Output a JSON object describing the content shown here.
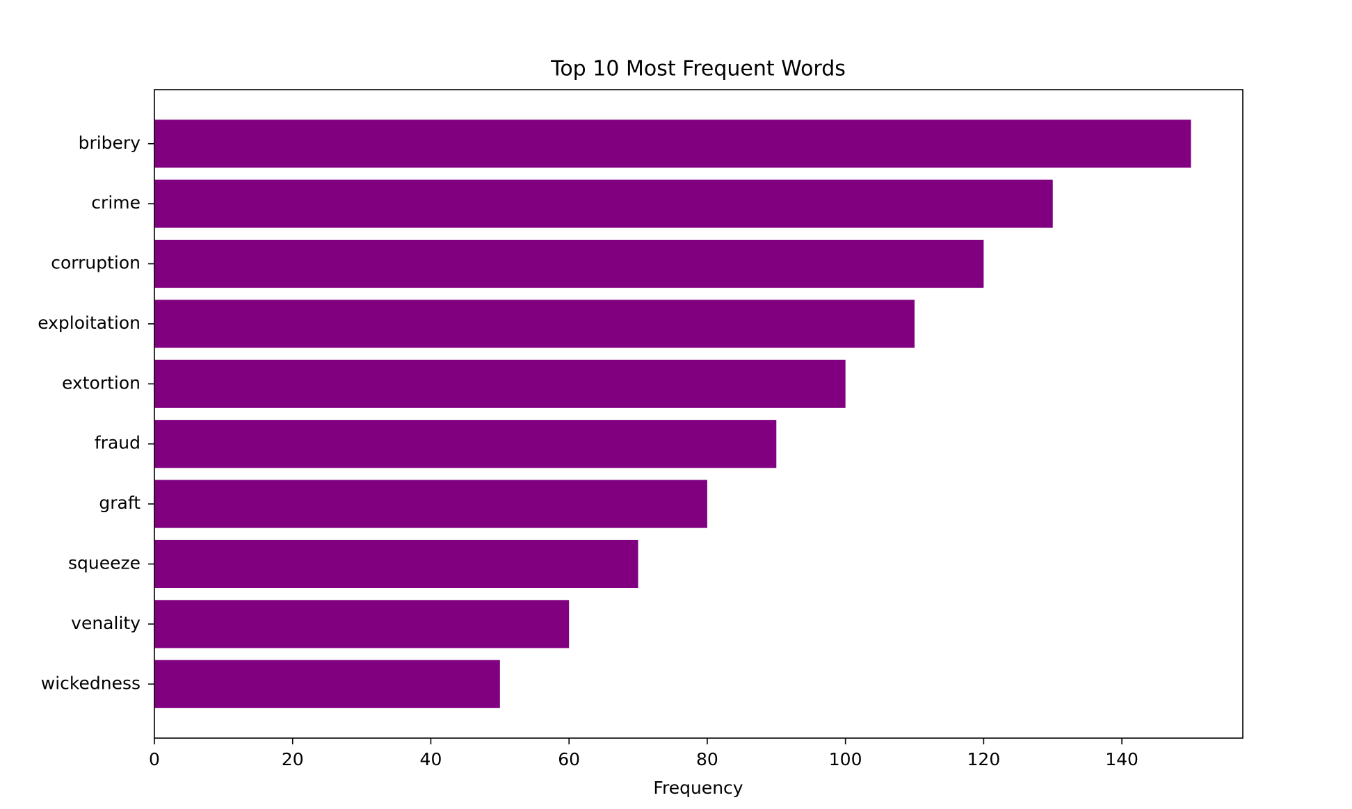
{
  "chart_data": {
    "type": "barh",
    "title": "Top 10 Most Frequent Words",
    "xlabel": "Frequency",
    "categories": [
      "bribery",
      "crime",
      "corruption",
      "exploitation",
      "extortion",
      "fraud",
      "graft",
      "squeeze",
      "venality",
      "wickedness"
    ],
    "values": [
      150,
      130,
      120,
      110,
      100,
      90,
      80,
      70,
      60,
      50
    ],
    "color": "#800080",
    "xlim": [
      0,
      157.5
    ],
    "xticks": [
      0,
      20,
      40,
      60,
      80,
      100,
      120,
      140
    ],
    "grid": false
  }
}
